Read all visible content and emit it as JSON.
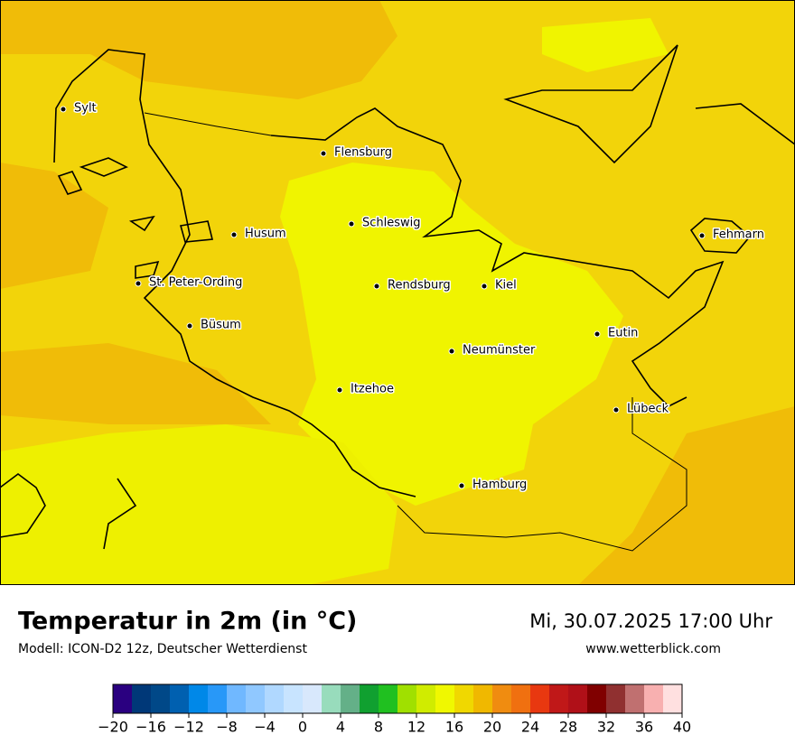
{
  "header": {
    "title": "Temperatur in 2m (in °C)",
    "model": "Modell: ICON-D2 12z, Deutscher Wetterdienst",
    "datetime": "Mi, 30.07.2025 17:00 Uhr",
    "website": "www.wetterblick.com"
  },
  "cities": [
    "Sylt",
    "Flensburg",
    "Schleswig",
    "Husum",
    "Fehmarn",
    "St. Peter-Ording",
    "Rendsburg",
    "Kiel",
    "Büsum",
    "Eutin",
    "Neumünster",
    "Itzehoe",
    "Lübeck",
    "Hamburg"
  ],
  "colorbar": {
    "range": [
      -20,
      40
    ],
    "colors": [
      "#2a0080",
      "#003878",
      "#004888",
      "#0060b0",
      "#0088e8",
      "#2898f8",
      "#70b8ff",
      "#90c8ff",
      "#b0d8ff",
      "#c8e4ff",
      "#d8e8fc",
      "#98dcbc",
      "#64b088",
      "#10a030",
      "#20c020",
      "#a0e000",
      "#d0ec00",
      "#f0f800",
      "#f0d800",
      "#f0b800",
      "#f08c10",
      "#f07010",
      "#e83810",
      "#c01818",
      "#b01018",
      "#800000",
      "#903030",
      "#c07070",
      "#f8b0b0",
      "#ffe0e0"
    ],
    "ticks": [
      {
        "value": -20,
        "label": "−20"
      },
      {
        "value": -16,
        "label": "−16"
      },
      {
        "value": -12,
        "label": "−12"
      },
      {
        "value": -8,
        "label": "−8"
      },
      {
        "value": -4,
        "label": "−4"
      },
      0,
      4,
      8,
      12,
      16,
      20,
      24,
      28,
      32,
      36,
      40
    ]
  }
}
